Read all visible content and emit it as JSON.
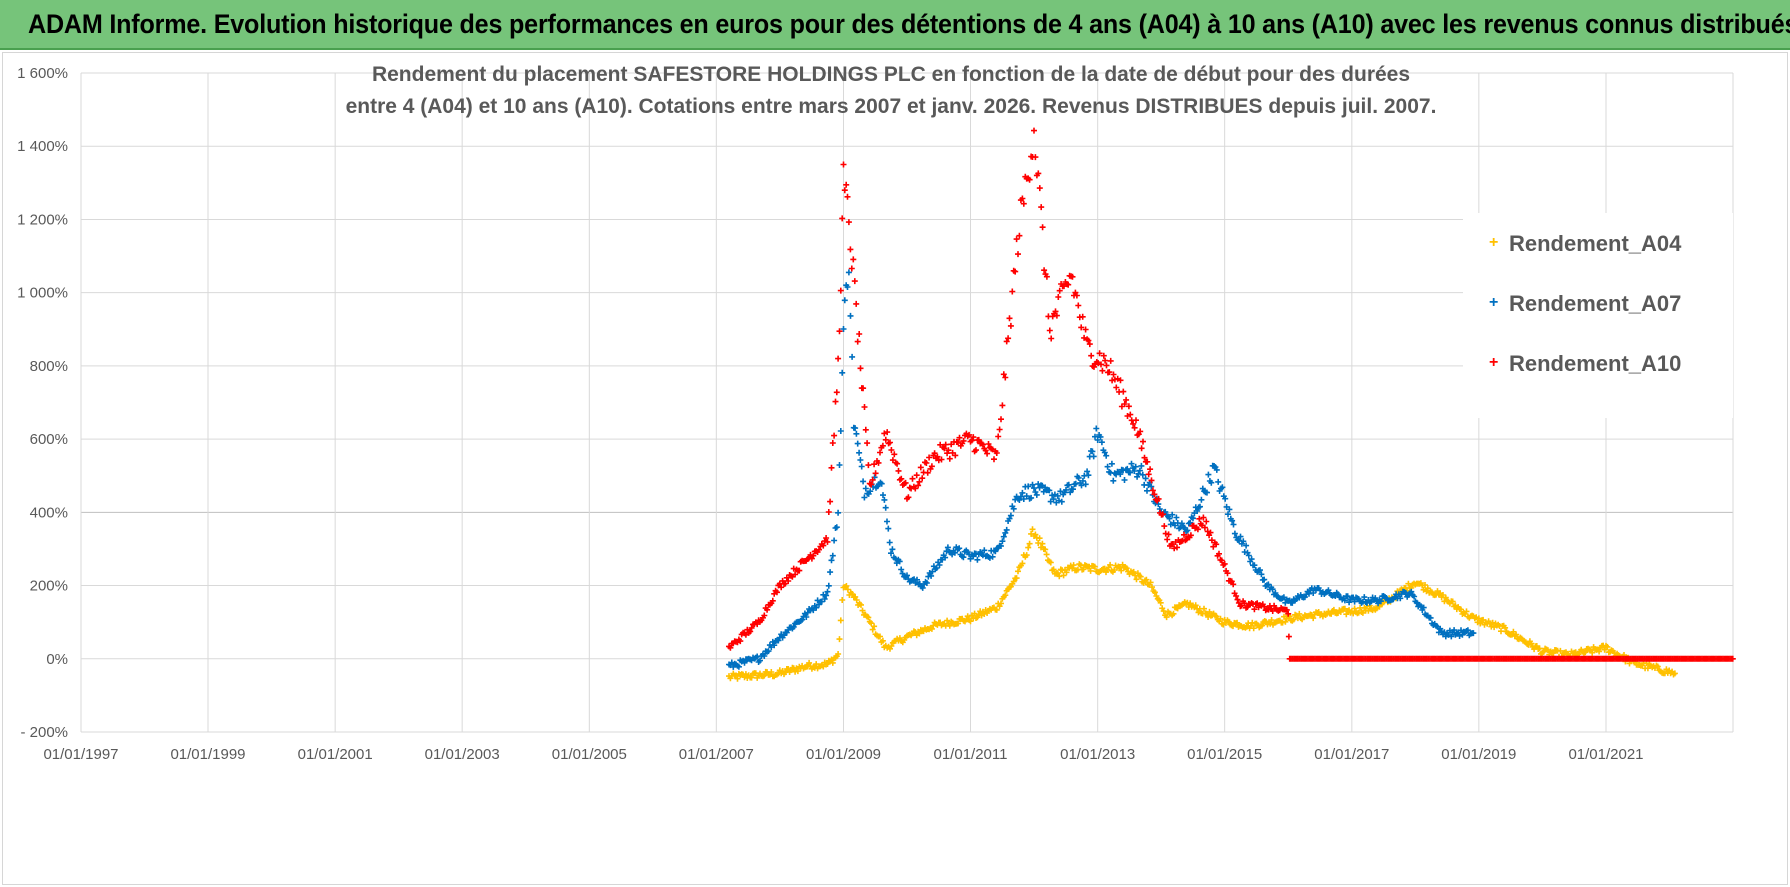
{
  "banner": {
    "title": "ADAM Informe. Evolution historique des performances en euros pour des détentions de 4 ans (A04) à 10 ans (A10) avec les revenus connus distribués"
  },
  "chart_data": {
    "type": "scatter",
    "title_line1": "Rendement du placement SAFESTORE HOLDINGS PLC en fonction de la date de début pour des durées",
    "title_line2": "entre 4 (A04) et 10 ans (A10).  Cotations entre mars 2007 et janv. 2026. Revenus DISTRIBUES depuis juil. 2007.",
    "marker": "+",
    "xlim": [
      "01/01/1997",
      "01/01/2023"
    ],
    "ylim": [
      -200,
      1600
    ],
    "y_ticks": [
      "- 200%",
      "0%",
      "200%",
      "400%",
      "600%",
      "800%",
      "1 000%",
      "1 200%",
      "1 400%",
      "1 600%"
    ],
    "x_ticks": [
      "01/01/1997",
      "01/01/1999",
      "01/01/2001",
      "01/01/2003",
      "01/01/2005",
      "01/01/2007",
      "01/01/2009",
      "01/01/2011",
      "01/01/2013",
      "01/01/2015",
      "01/01/2017",
      "01/01/2019",
      "01/01/2021"
    ],
    "grid": true,
    "legend_position": "right",
    "series": [
      {
        "name": "Rendement_A04",
        "color": "#ffc000",
        "points": [
          [
            "2007-03-15",
            -50
          ],
          [
            "2007-09-01",
            -45
          ],
          [
            "2008-01-01",
            -40
          ],
          [
            "2008-06-01",
            -20
          ],
          [
            "2008-10-01",
            -15
          ],
          [
            "2008-12-01",
            10
          ],
          [
            "2009-01-01",
            200
          ],
          [
            "2009-03-01",
            170
          ],
          [
            "2009-06-01",
            100
          ],
          [
            "2009-09-01",
            30
          ],
          [
            "2010-01-01",
            60
          ],
          [
            "2010-06-01",
            90
          ],
          [
            "2011-01-01",
            110
          ],
          [
            "2011-06-01",
            140
          ],
          [
            "2011-10-01",
            230
          ],
          [
            "2012-01-01",
            350
          ],
          [
            "2012-05-01",
            230
          ],
          [
            "2012-09-01",
            250
          ],
          [
            "2013-01-01",
            245
          ],
          [
            "2013-06-01",
            250
          ],
          [
            "2013-11-01",
            200
          ],
          [
            "2014-02-01",
            120
          ],
          [
            "2014-06-01",
            150
          ],
          [
            "2015-01-01",
            100
          ],
          [
            "2015-06-01",
            90
          ],
          [
            "2016-01-01",
            110
          ],
          [
            "2016-06-01",
            120
          ],
          [
            "2017-01-01",
            130
          ],
          [
            "2017-06-01",
            140
          ],
          [
            "2018-01-01",
            210
          ],
          [
            "2018-06-01",
            170
          ],
          [
            "2018-12-01",
            110
          ],
          [
            "2019-06-01",
            80
          ],
          [
            "2020-01-01",
            20
          ],
          [
            "2020-06-01",
            10
          ],
          [
            "2021-01-01",
            30
          ],
          [
            "2021-06-01",
            -10
          ],
          [
            "2022-02-01",
            -40
          ]
        ]
      },
      {
        "name": "Rendement_A07",
        "color": "#0070c0",
        "points": [
          [
            "2007-03-15",
            -20
          ],
          [
            "2007-09-01",
            0
          ],
          [
            "2008-01-01",
            60
          ],
          [
            "2008-06-01",
            120
          ],
          [
            "2008-10-01",
            180
          ],
          [
            "2008-12-01",
            400
          ],
          [
            "2009-01-01",
            900
          ],
          [
            "2009-02-01",
            1100
          ],
          [
            "2009-03-01",
            650
          ],
          [
            "2009-05-01",
            460
          ],
          [
            "2009-08-01",
            500
          ],
          [
            "2009-10-01",
            300
          ],
          [
            "2010-01-01",
            220
          ],
          [
            "2010-04-01",
            200
          ],
          [
            "2010-09-01",
            300
          ],
          [
            "2011-01-01",
            280
          ],
          [
            "2011-06-01",
            290
          ],
          [
            "2011-10-01",
            450
          ],
          [
            "2012-01-01",
            460
          ],
          [
            "2012-06-01",
            440
          ],
          [
            "2012-11-01",
            500
          ],
          [
            "2013-01-01",
            620
          ],
          [
            "2013-04-01",
            500
          ],
          [
            "2013-09-01",
            520
          ],
          [
            "2014-01-01",
            400
          ],
          [
            "2014-06-01",
            350
          ],
          [
            "2014-11-01",
            520
          ],
          [
            "2015-03-01",
            350
          ],
          [
            "2015-09-01",
            200
          ],
          [
            "2016-01-01",
            150
          ],
          [
            "2016-06-01",
            190
          ],
          [
            "2017-01-01",
            160
          ],
          [
            "2017-06-01",
            160
          ],
          [
            "2017-12-01",
            180
          ],
          [
            "2018-06-01",
            70
          ],
          [
            "2018-12-01",
            70
          ]
        ]
      },
      {
        "name": "Rendement_A10",
        "color": "#ff0000",
        "points": [
          [
            "2007-03-15",
            30
          ],
          [
            "2007-09-01",
            100
          ],
          [
            "2008-01-01",
            200
          ],
          [
            "2008-06-01",
            270
          ],
          [
            "2008-10-01",
            330
          ],
          [
            "2008-12-01",
            800
          ],
          [
            "2009-01-01",
            1300
          ],
          [
            "2009-02-01",
            1200
          ],
          [
            "2009-04-01",
            850
          ],
          [
            "2009-06-01",
            470
          ],
          [
            "2009-09-01",
            620
          ],
          [
            "2010-01-01",
            450
          ],
          [
            "2010-06-01",
            550
          ],
          [
            "2011-01-01",
            600
          ],
          [
            "2011-06-01",
            550
          ],
          [
            "2011-10-01",
            1150
          ],
          [
            "2012-01-01",
            1450
          ],
          [
            "2012-04-01",
            900
          ],
          [
            "2012-08-01",
            1050
          ],
          [
            "2012-11-01",
            850
          ],
          [
            "2013-03-01",
            800
          ],
          [
            "2013-08-01",
            650
          ],
          [
            "2013-12-01",
            450
          ],
          [
            "2014-03-01",
            300
          ],
          [
            "2014-09-01",
            380
          ],
          [
            "2015-01-01",
            250
          ],
          [
            "2015-04-01",
            150
          ],
          [
            "2016-01-01",
            130
          ],
          [
            "2016-01-10",
            0
          ],
          [
            "2022-12-31",
            0
          ]
        ]
      }
    ]
  }
}
